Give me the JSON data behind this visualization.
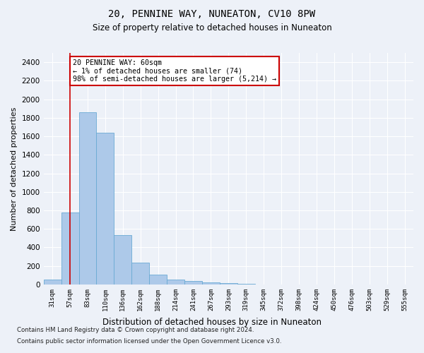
{
  "title": "20, PENNINE WAY, NUNEATON, CV10 8PW",
  "subtitle": "Size of property relative to detached houses in Nuneaton",
  "xlabel": "Distribution of detached houses by size in Nuneaton",
  "ylabel": "Number of detached properties",
  "bar_color": "#adc9e9",
  "bar_edge_color": "#6aaad4",
  "categories": [
    "31sqm",
    "57sqm",
    "83sqm",
    "110sqm",
    "136sqm",
    "162sqm",
    "188sqm",
    "214sqm",
    "241sqm",
    "267sqm",
    "293sqm",
    "319sqm",
    "345sqm",
    "372sqm",
    "398sqm",
    "424sqm",
    "450sqm",
    "476sqm",
    "503sqm",
    "529sqm",
    "555sqm"
  ],
  "values": [
    50,
    780,
    1860,
    1640,
    530,
    235,
    105,
    50,
    35,
    20,
    15,
    5,
    0,
    0,
    0,
    0,
    0,
    0,
    0,
    0,
    0
  ],
  "ylim": [
    0,
    2500
  ],
  "yticks": [
    0,
    200,
    400,
    600,
    800,
    1000,
    1200,
    1400,
    1600,
    1800,
    2000,
    2200,
    2400
  ],
  "property_line_x": 1,
  "annotation_text": "20 PENNINE WAY: 60sqm\n← 1% of detached houses are smaller (74)\n98% of semi-detached houses are larger (5,214) →",
  "annotation_box_color": "#ffffff",
  "annotation_box_edge_color": "#cc0000",
  "property_line_color": "#cc0000",
  "footer_line1": "Contains HM Land Registry data © Crown copyright and database right 2024.",
  "footer_line2": "Contains public sector information licensed under the Open Government Licence v3.0.",
  "background_color": "#edf1f8",
  "plot_bg_color": "#edf1f8",
  "grid_color": "#ffffff"
}
